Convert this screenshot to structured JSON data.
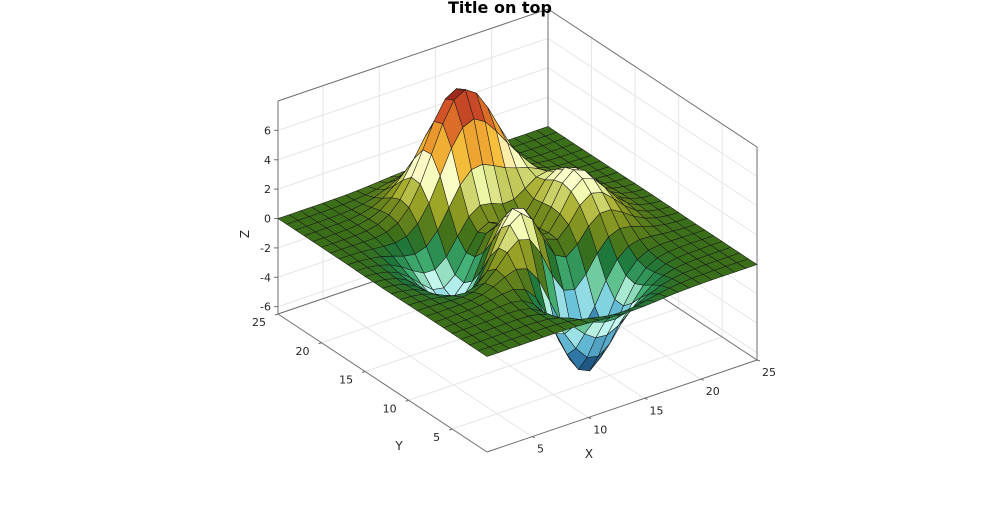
{
  "chart_data": {
    "type": "surface",
    "title": "Title on top",
    "xlabel": "X",
    "ylabel": "Y",
    "zlabel": "Z",
    "xlim": [
      1,
      25
    ],
    "ylim": [
      1,
      25
    ],
    "zlim": [
      -6.5,
      8
    ],
    "x_ticks": [
      "5",
      "10",
      "15",
      "20",
      "25"
    ],
    "y_ticks": [
      "5",
      "10",
      "15",
      "20",
      "25"
    ],
    "z_ticks": [
      "-6",
      "-4",
      "-2",
      "0",
      "2",
      "4",
      "6"
    ],
    "grid": true,
    "colormap": "summer-to-autumn-like (green base, yellow/orange/red peaks, blue/cyan valleys)",
    "surface": "peaks(25)",
    "grid_size": [
      25,
      25
    ],
    "z_max": 8.1,
    "z_min": -6.5
  }
}
